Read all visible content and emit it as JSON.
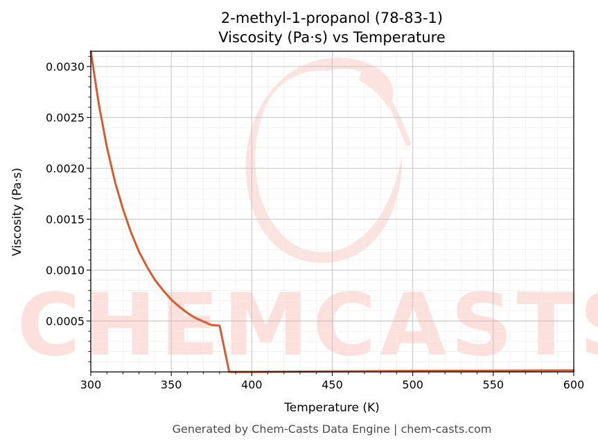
{
  "chart_data": {
    "type": "line",
    "title": "2-methyl-1-propanol (78-83-1)",
    "subtitle": "Viscosity (Pa·s) vs Temperature",
    "xlabel": "Temperature (K)",
    "ylabel": "Viscosity (Pa·s)",
    "xlim": [
      300,
      600
    ],
    "ylim": [
      0,
      0.00315
    ],
    "x_ticks": [
      300,
      350,
      400,
      450,
      500,
      550,
      600
    ],
    "x_tick_labels": [
      "300",
      "350",
      "400",
      "450",
      "500",
      "550",
      "600"
    ],
    "y_ticks": [
      0.0005,
      0.001,
      0.0015,
      0.002,
      0.0025,
      0.003
    ],
    "y_tick_labels": [
      "0.0005",
      "0.0010",
      "0.0015",
      "0.0020",
      "0.0025",
      "0.0030"
    ],
    "grid": true,
    "minor_grid": true,
    "series": [
      {
        "color": "#d95a2b",
        "x": [
          300,
          305,
          310,
          315,
          320,
          325,
          330,
          335,
          340,
          345,
          350,
          355,
          360,
          365,
          370,
          375,
          380,
          386,
          400,
          450,
          500,
          550,
          600
        ],
        "y": [
          0.00315,
          0.00263,
          0.00221,
          0.00187,
          0.0016,
          0.00137,
          0.00118,
          0.00103,
          0.0009,
          0.0008,
          0.00071,
          0.00064,
          0.00058,
          0.00053,
          0.000495,
          0.00046,
          0.000455,
          0.0,
          0.0,
          5e-06,
          1e-05,
          1.2e-05,
          1.5e-05
        ]
      }
    ]
  },
  "watermark": {
    "text": "CHEMCASTS",
    "color": "#fde0dc"
  },
  "footer": {
    "text": "Generated by Chem-Casts Data Engine | chem-casts.com"
  }
}
